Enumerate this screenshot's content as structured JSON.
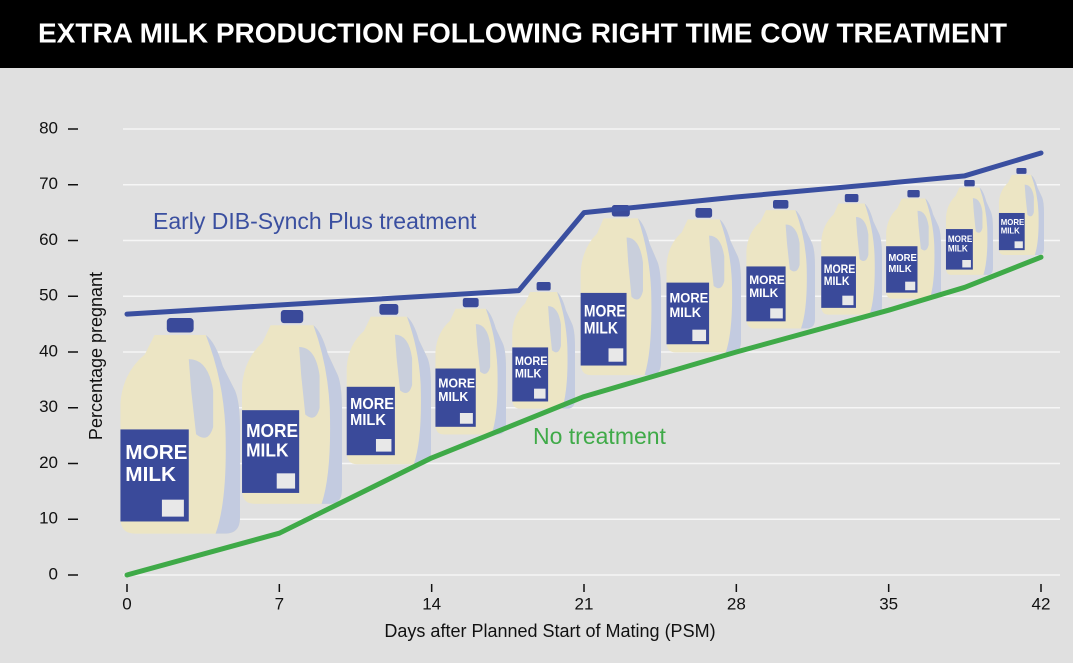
{
  "chart_data": {
    "type": "line",
    "title": "EXTRA MILK PRODUCTION FOLLOWING RIGHT TIME COW TREATMENT",
    "x_label": "Days after Planned Start of Mating (PSM)",
    "y_label": "Percentage pregnant",
    "illustration_text": [
      "MORE",
      "MILK"
    ],
    "xlim": [
      0,
      42
    ],
    "ylim": [
      0,
      80
    ],
    "xticks": [
      0,
      7,
      14,
      21,
      28,
      35,
      42
    ],
    "yticks": [
      0,
      10,
      20,
      30,
      40,
      50,
      60,
      70,
      80
    ],
    "grid": true,
    "series": [
      {
        "name": "Early DIB-Synch Plus treatment",
        "color": "#3a4fa0",
        "x": [
          0,
          18,
          21,
          28,
          35,
          38.5,
          42
        ],
        "values": [
          46.8,
          51,
          65,
          67.8,
          70.3,
          71.6,
          75.7
        ]
      },
      {
        "name": "No treatment",
        "color": "#3faa48",
        "x": [
          0,
          7,
          14,
          21,
          28,
          35,
          38.5,
          42
        ],
        "values": [
          0,
          7.5,
          21,
          32,
          40,
          47.5,
          51.6,
          57
        ]
      }
    ]
  }
}
